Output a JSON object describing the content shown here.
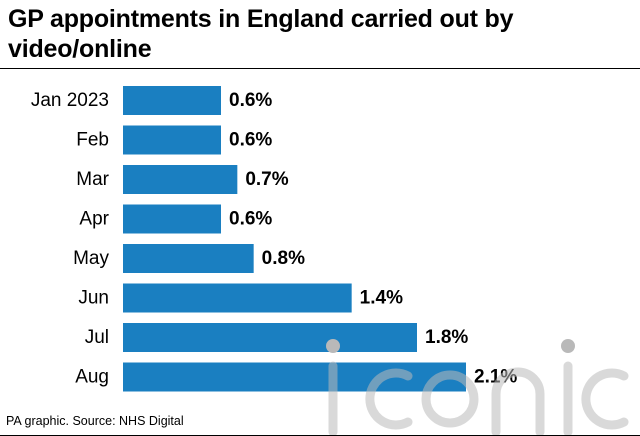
{
  "title": "GP appointments in England carried out by video/online",
  "source": "PA graphic. Source: NHS Digital",
  "watermark": "iconic",
  "colors": {
    "bar": "#1a7fc1",
    "watermark": "#b9b9b9"
  },
  "chart_data": {
    "type": "bar",
    "orientation": "horizontal",
    "categories": [
      "Jan 2023",
      "Feb",
      "Mar",
      "Apr",
      "May",
      "Jun",
      "Jul",
      "Aug"
    ],
    "values": [
      0.6,
      0.6,
      0.7,
      0.6,
      0.8,
      1.4,
      1.8,
      2.1
    ],
    "value_labels": [
      "0.6%",
      "0.6%",
      "0.7%",
      "0.6%",
      "0.8%",
      "1.4%",
      "1.8%",
      "2.1%"
    ],
    "unit": "%",
    "xlim": [
      0,
      2.1
    ],
    "grid": false,
    "legend": "none"
  }
}
